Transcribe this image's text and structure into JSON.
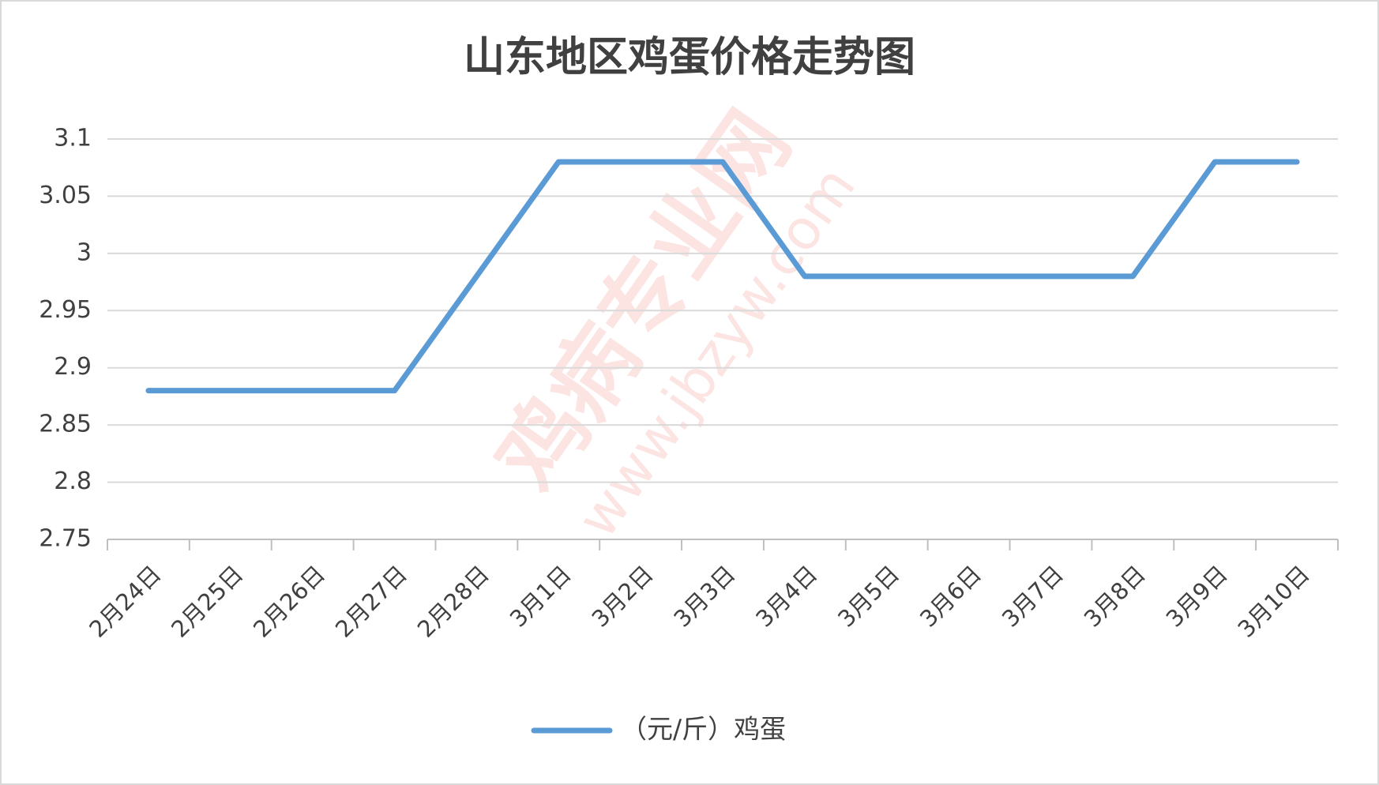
{
  "chart_data": {
    "type": "line",
    "title": "山东地区鸡蛋价格走势图",
    "categories": [
      "2月24日",
      "2月25日",
      "2月26日",
      "2月27日",
      "2月28日",
      "3月1日",
      "3月2日",
      "3月3日",
      "3月4日",
      "3月5日",
      "3月6日",
      "3月7日",
      "3月8日",
      "3月9日",
      "3月10日"
    ],
    "series": [
      {
        "name": "（元/斤）鸡蛋",
        "color": "#5b9bd5",
        "values": [
          2.88,
          2.88,
          2.88,
          2.88,
          2.98,
          3.08,
          3.08,
          3.08,
          2.98,
          2.98,
          2.98,
          2.98,
          2.98,
          3.08,
          3.08
        ]
      }
    ],
    "ylim": [
      2.75,
      3.1
    ],
    "yticks": [
      2.75,
      2.8,
      2.85,
      2.9,
      2.95,
      3,
      3.05,
      3.1
    ],
    "grid": true,
    "legend": "bottom",
    "watermark": [
      "鸡病专业网",
      "www.jbzyw.com"
    ]
  }
}
